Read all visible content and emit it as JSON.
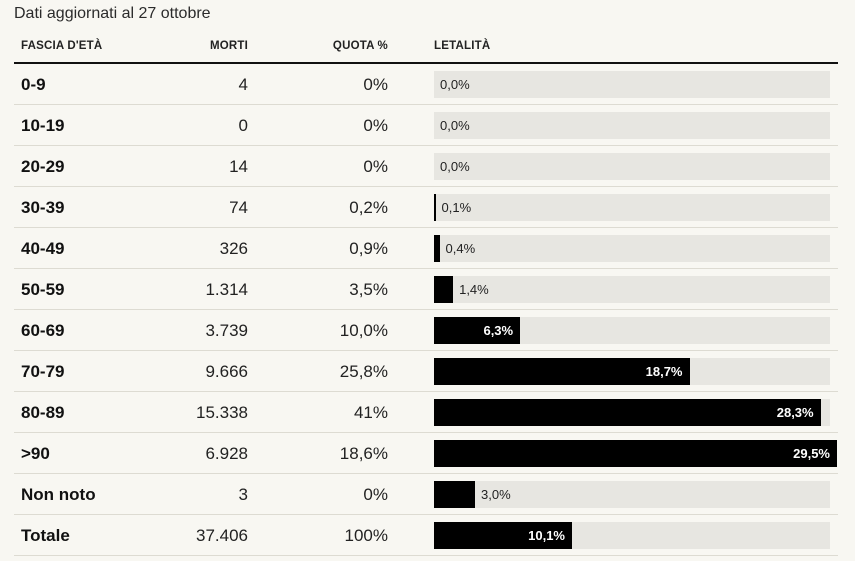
{
  "subtitle": "Dati aggiornati al 27 ottobre",
  "headers": {
    "age": "FASCIA D'ETÀ",
    "deaths": "MORTI",
    "share": "QUOTA %",
    "lethality": "LETALITÀ"
  },
  "colors": {
    "bar": "#000000",
    "track": "#e7e6e1",
    "background": "#f8f7f2"
  },
  "chart_data": {
    "type": "table",
    "lethality_axis_max": 29.5,
    "rows": [
      {
        "age": "0-9",
        "deaths": "4",
        "share": "0%",
        "lethality": 0.0,
        "lethality_label": "0,0%"
      },
      {
        "age": "10-19",
        "deaths": "0",
        "share": "0%",
        "lethality": 0.0,
        "lethality_label": "0,0%"
      },
      {
        "age": "20-29",
        "deaths": "14",
        "share": "0%",
        "lethality": 0.0,
        "lethality_label": "0,0%"
      },
      {
        "age": "30-39",
        "deaths": "74",
        "share": "0,2%",
        "lethality": 0.1,
        "lethality_label": "0,1%"
      },
      {
        "age": "40-49",
        "deaths": "326",
        "share": "0,9%",
        "lethality": 0.4,
        "lethality_label": "0,4%"
      },
      {
        "age": "50-59",
        "deaths": "1.314",
        "share": "3,5%",
        "lethality": 1.4,
        "lethality_label": "1,4%"
      },
      {
        "age": "60-69",
        "deaths": "3.739",
        "share": "10,0%",
        "lethality": 6.3,
        "lethality_label": "6,3%"
      },
      {
        "age": "70-79",
        "deaths": "9.666",
        "share": "25,8%",
        "lethality": 18.7,
        "lethality_label": "18,7%"
      },
      {
        "age": "80-89",
        "deaths": "15.338",
        "share": "41%",
        "lethality": 28.3,
        "lethality_label": "28,3%"
      },
      {
        "age": ">90",
        "deaths": "6.928",
        "share": "18,6%",
        "lethality": 29.5,
        "lethality_label": "29,5%"
      },
      {
        "age": "Non noto",
        "deaths": "3",
        "share": "0%",
        "lethality": 3.0,
        "lethality_label": "3,0%"
      },
      {
        "age": "Totale",
        "deaths": "37.406",
        "share": "100%",
        "lethality": 10.1,
        "lethality_label": "10,1%"
      }
    ]
  }
}
